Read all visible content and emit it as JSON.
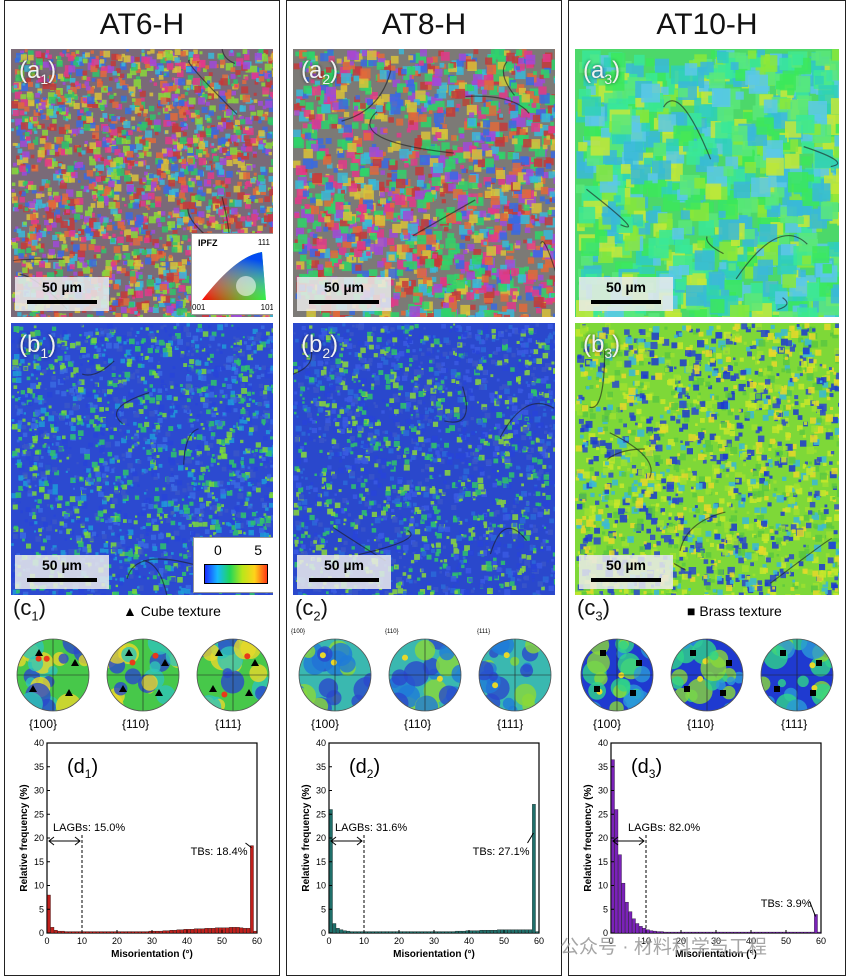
{
  "columns": [
    {
      "title": "AT6-H",
      "ipf_label": "(a",
      "ipf_sub": "1",
      "kam_label": "(b",
      "kam_sub": "1",
      "pf_label": "(c",
      "pf_sub": "1",
      "hist_label": "(d",
      "hist_sub": "1",
      "scale_ipf": "50 µm",
      "scale_kam": "50 µm",
      "texture": "Cube texture",
      "pf_names": [
        "{100}",
        "{110}",
        "{111}"
      ],
      "lagb_text": "LAGBs: 15.0%",
      "tb_text": "TBs: 18.4%"
    },
    {
      "title": "AT8-H",
      "ipf_label": "(a",
      "ipf_sub": "2",
      "kam_label": "(b",
      "kam_sub": "2",
      "pf_label": "(c",
      "pf_sub": "2",
      "hist_label": "(d",
      "hist_sub": "2",
      "scale_ipf": "50 µm",
      "scale_kam": "50 µm",
      "texture": "",
      "pf_small": [
        "{100}",
        "{110}",
        "{111}"
      ],
      "pf_names": [
        "{100}",
        "{110}",
        "{111}"
      ],
      "lagb_text": "LAGBs: 31.6%",
      "tb_text": "TBs: 27.1%"
    },
    {
      "title": "AT10-H",
      "ipf_label": "(a",
      "ipf_sub": "3",
      "kam_label": "(b",
      "kam_sub": "3",
      "pf_label": "(c",
      "pf_sub": "3",
      "hist_label": "(d",
      "hist_sub": "3",
      "scale_ipf": "50 µm",
      "scale_kam": "50 µm",
      "texture": "Brass texture",
      "pf_names": [
        "{100}",
        "{110}",
        "{111}"
      ],
      "lagb_text": "LAGBs: 82.0%",
      "tb_text": "TBs: 3.9%"
    }
  ],
  "ipf_legend": {
    "title": "IPFZ",
    "v001": "001",
    "v101": "101",
    "v111": "111"
  },
  "kam_legend": {
    "min": "0",
    "max": "5"
  },
  "watermark": "公众号 · 材料科学与工程",
  "chart_data": [
    {
      "type": "bar",
      "title": "(d1)",
      "xlabel": "Misorientation (°)",
      "ylabel": "Relative frequency (%)",
      "xlim": [
        0,
        60
      ],
      "ylim": [
        0,
        40
      ],
      "xticks": [
        0,
        10,
        20,
        30,
        40,
        50,
        60
      ],
      "yticks": [
        0,
        5,
        10,
        15,
        20,
        25,
        30,
        35,
        40
      ],
      "color": "#c0201c",
      "x": [
        1,
        2,
        3,
        4,
        5,
        6,
        7,
        8,
        9,
        10,
        11,
        12,
        13,
        14,
        15,
        16,
        17,
        18,
        19,
        20,
        21,
        22,
        23,
        24,
        25,
        26,
        27,
        28,
        29,
        30,
        31,
        32,
        33,
        34,
        35,
        36,
        37,
        38,
        39,
        40,
        41,
        42,
        43,
        44,
        45,
        46,
        47,
        48,
        49,
        50,
        51,
        52,
        53,
        54,
        55,
        56,
        57,
        58,
        59,
        60
      ],
      "values": [
        8.0,
        1.2,
        0.6,
        0.4,
        0.4,
        0.3,
        0.3,
        0.3,
        0.3,
        0.3,
        0.3,
        0.3,
        0.3,
        0.3,
        0.3,
        0.3,
        0.3,
        0.3,
        0.3,
        0.3,
        0.3,
        0.3,
        0.3,
        0.3,
        0.3,
        0.3,
        0.3,
        0.3,
        0.3,
        0.4,
        0.4,
        0.4,
        0.4,
        0.5,
        0.5,
        0.6,
        0.6,
        0.7,
        0.7,
        0.8,
        0.8,
        0.8,
        0.9,
        0.9,
        0.9,
        1.0,
        1.0,
        1.0,
        1.1,
        1.1,
        1.1,
        1.1,
        1.2,
        1.2,
        1.2,
        1.1,
        1.0,
        1.0,
        18.4,
        0.4
      ]
    },
    {
      "type": "bar",
      "title": "(d2)",
      "xlabel": "Misorientation (°)",
      "ylabel": "Relative frequency (%)",
      "xlim": [
        0,
        60
      ],
      "ylim": [
        0,
        40
      ],
      "xticks": [
        0,
        10,
        20,
        30,
        40,
        50,
        60
      ],
      "yticks": [
        0,
        5,
        10,
        15,
        20,
        25,
        30,
        35,
        40
      ],
      "color": "#1f6f6a",
      "x": [
        1,
        2,
        3,
        4,
        5,
        6,
        7,
        8,
        9,
        10,
        11,
        12,
        13,
        14,
        15,
        16,
        17,
        18,
        19,
        20,
        21,
        22,
        23,
        24,
        25,
        26,
        27,
        28,
        29,
        30,
        31,
        32,
        33,
        34,
        35,
        36,
        37,
        38,
        39,
        40,
        41,
        42,
        43,
        44,
        45,
        46,
        47,
        48,
        49,
        50,
        51,
        52,
        53,
        54,
        55,
        56,
        57,
        58,
        59,
        60
      ],
      "values": [
        26.0,
        2.0,
        1.0,
        0.7,
        0.5,
        0.4,
        0.3,
        0.3,
        0.3,
        0.3,
        0.3,
        0.3,
        0.3,
        0.3,
        0.3,
        0.3,
        0.3,
        0.3,
        0.3,
        0.3,
        0.3,
        0.3,
        0.3,
        0.3,
        0.3,
        0.3,
        0.3,
        0.3,
        0.3,
        0.3,
        0.3,
        0.3,
        0.3,
        0.3,
        0.3,
        0.3,
        0.4,
        0.4,
        0.4,
        0.5,
        0.5,
        0.5,
        0.5,
        0.6,
        0.6,
        0.6,
        0.6,
        0.6,
        0.7,
        0.7,
        0.7,
        0.7,
        0.7,
        0.7,
        0.7,
        0.7,
        0.7,
        0.7,
        27.1,
        0.3
      ]
    },
    {
      "type": "bar",
      "title": "(d3)",
      "xlabel": "Misorientation (°)",
      "ylabel": "Relative frequency (%)",
      "xlim": [
        0,
        60
      ],
      "ylim": [
        0,
        40
      ],
      "xticks": [
        0,
        10,
        20,
        30,
        40,
        50,
        60
      ],
      "yticks": [
        0,
        5,
        10,
        15,
        20,
        25,
        30,
        35,
        40
      ],
      "color": "#7a22b8",
      "x": [
        1,
        2,
        3,
        4,
        5,
        6,
        7,
        8,
        9,
        10,
        11,
        12,
        13,
        14,
        15,
        16,
        17,
        18,
        19,
        20,
        21,
        22,
        23,
        24,
        25,
        26,
        27,
        28,
        29,
        30,
        31,
        32,
        33,
        34,
        35,
        36,
        37,
        38,
        39,
        40,
        41,
        42,
        43,
        44,
        45,
        46,
        47,
        48,
        49,
        50,
        51,
        52,
        53,
        54,
        55,
        56,
        57,
        58,
        59,
        60
      ],
      "values": [
        36.5,
        26.0,
        16.5,
        10.5,
        6.5,
        4.5,
        3.0,
        2.0,
        1.4,
        1.0,
        0.7,
        0.5,
        0.4,
        0.3,
        0.3,
        0.2,
        0.2,
        0.2,
        0.2,
        0.2,
        0.2,
        0.2,
        0.2,
        0.2,
        0.2,
        0.2,
        0.2,
        0.2,
        0.2,
        0.2,
        0.2,
        0.2,
        0.2,
        0.2,
        0.2,
        0.2,
        0.2,
        0.2,
        0.2,
        0.2,
        0.2,
        0.2,
        0.2,
        0.2,
        0.2,
        0.2,
        0.2,
        0.2,
        0.2,
        0.2,
        0.2,
        0.2,
        0.2,
        0.2,
        0.2,
        0.2,
        0.2,
        0.2,
        3.9,
        0.2
      ]
    }
  ]
}
